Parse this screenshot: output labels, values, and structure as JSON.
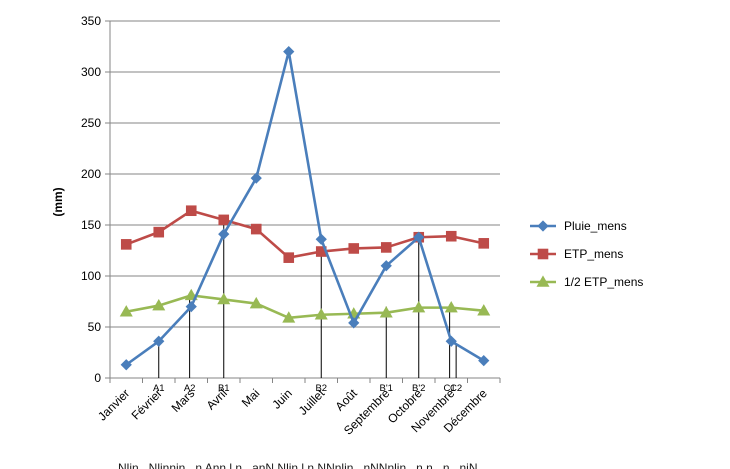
{
  "chart_data": {
    "type": "line",
    "title": "",
    "xlabel": "",
    "ylabel": "(mm)",
    "ylim": [
      0,
      350
    ],
    "yticks": [
      0,
      50,
      100,
      150,
      200,
      250,
      300,
      350
    ],
    "grid": "horizontal",
    "legend_position": "right",
    "categories": [
      "Janvier",
      "Février",
      "Mars",
      "Avril",
      "Mai",
      "Juin",
      "Juillet",
      "Août",
      "Septembre",
      "Octobre",
      "Novembre",
      "Décembre"
    ],
    "series": [
      {
        "name": "Pluie_mens",
        "color": "#4A7EBB",
        "marker": "diamond",
        "values": [
          13,
          36,
          70,
          141,
          196,
          320,
          136,
          54,
          110,
          138,
          36,
          17
        ]
      },
      {
        "name": "ETP_mens",
        "color": "#BE4B48",
        "marker": "square",
        "values": [
          131,
          143,
          164,
          155,
          146,
          118,
          124,
          127,
          128,
          138,
          139,
          132
        ]
      },
      {
        "name": "1/2 ETP_mens",
        "color": "#98B954",
        "marker": "triangle",
        "values": [
          65,
          71,
          81,
          77,
          73,
          59,
          62,
          63,
          64,
          69,
          69,
          66
        ]
      }
    ],
    "annotations": [
      {
        "label": "A1",
        "position": 1.0,
        "value": 36
      },
      {
        "label": "A2",
        "position": 1.95,
        "value": 79
      },
      {
        "label": "B1",
        "position": 3.0,
        "value": 154
      },
      {
        "label": "B2",
        "position": 6.0,
        "value": 126
      },
      {
        "label": "B'1",
        "position": 8.0,
        "value": 70
      },
      {
        "label": "B'2",
        "position": 9.0,
        "value": 138
      },
      {
        "label": "C1",
        "position": 9.95,
        "value": 72
      },
      {
        "label": "C2",
        "position": 10.15,
        "value": 34
      }
    ]
  },
  "bottom_text": "Nlin...Nlinnin...n Ann.l.n...anN.Nlin.l.n NNnlin...nNNnlin...n.n...n...niN"
}
